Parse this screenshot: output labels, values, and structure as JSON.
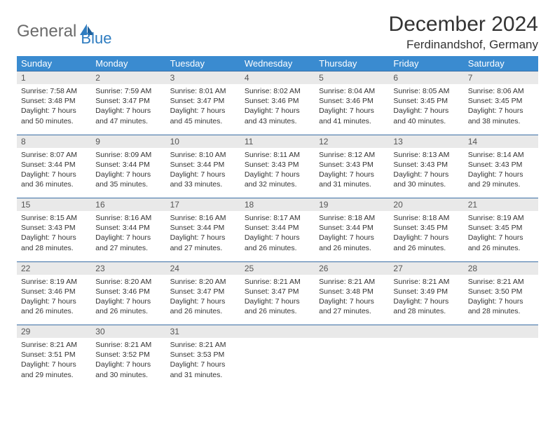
{
  "logo": {
    "text1": "General",
    "text2": "Blue"
  },
  "title": "December 2024",
  "location": "Ferdinandshof, Germany",
  "headers": [
    "Sunday",
    "Monday",
    "Tuesday",
    "Wednesday",
    "Thursday",
    "Friday",
    "Saturday"
  ],
  "colors": {
    "header_bg": "#3a8bd0",
    "row_divider": "#3a6ea5",
    "daynum_bg": "#e9e9e9",
    "logo_gray": "#6b6b6b",
    "logo_blue": "#2e7cc0"
  },
  "weeks": [
    [
      {
        "num": "1",
        "sunrise": "Sunrise: 7:58 AM",
        "sunset": "Sunset: 3:48 PM",
        "daylight": "Daylight: 7 hours and 50 minutes."
      },
      {
        "num": "2",
        "sunrise": "Sunrise: 7:59 AM",
        "sunset": "Sunset: 3:47 PM",
        "daylight": "Daylight: 7 hours and 47 minutes."
      },
      {
        "num": "3",
        "sunrise": "Sunrise: 8:01 AM",
        "sunset": "Sunset: 3:47 PM",
        "daylight": "Daylight: 7 hours and 45 minutes."
      },
      {
        "num": "4",
        "sunrise": "Sunrise: 8:02 AM",
        "sunset": "Sunset: 3:46 PM",
        "daylight": "Daylight: 7 hours and 43 minutes."
      },
      {
        "num": "5",
        "sunrise": "Sunrise: 8:04 AM",
        "sunset": "Sunset: 3:46 PM",
        "daylight": "Daylight: 7 hours and 41 minutes."
      },
      {
        "num": "6",
        "sunrise": "Sunrise: 8:05 AM",
        "sunset": "Sunset: 3:45 PM",
        "daylight": "Daylight: 7 hours and 40 minutes."
      },
      {
        "num": "7",
        "sunrise": "Sunrise: 8:06 AM",
        "sunset": "Sunset: 3:45 PM",
        "daylight": "Daylight: 7 hours and 38 minutes."
      }
    ],
    [
      {
        "num": "8",
        "sunrise": "Sunrise: 8:07 AM",
        "sunset": "Sunset: 3:44 PM",
        "daylight": "Daylight: 7 hours and 36 minutes."
      },
      {
        "num": "9",
        "sunrise": "Sunrise: 8:09 AM",
        "sunset": "Sunset: 3:44 PM",
        "daylight": "Daylight: 7 hours and 35 minutes."
      },
      {
        "num": "10",
        "sunrise": "Sunrise: 8:10 AM",
        "sunset": "Sunset: 3:44 PM",
        "daylight": "Daylight: 7 hours and 33 minutes."
      },
      {
        "num": "11",
        "sunrise": "Sunrise: 8:11 AM",
        "sunset": "Sunset: 3:43 PM",
        "daylight": "Daylight: 7 hours and 32 minutes."
      },
      {
        "num": "12",
        "sunrise": "Sunrise: 8:12 AM",
        "sunset": "Sunset: 3:43 PM",
        "daylight": "Daylight: 7 hours and 31 minutes."
      },
      {
        "num": "13",
        "sunrise": "Sunrise: 8:13 AM",
        "sunset": "Sunset: 3:43 PM",
        "daylight": "Daylight: 7 hours and 30 minutes."
      },
      {
        "num": "14",
        "sunrise": "Sunrise: 8:14 AM",
        "sunset": "Sunset: 3:43 PM",
        "daylight": "Daylight: 7 hours and 29 minutes."
      }
    ],
    [
      {
        "num": "15",
        "sunrise": "Sunrise: 8:15 AM",
        "sunset": "Sunset: 3:43 PM",
        "daylight": "Daylight: 7 hours and 28 minutes."
      },
      {
        "num": "16",
        "sunrise": "Sunrise: 8:16 AM",
        "sunset": "Sunset: 3:44 PM",
        "daylight": "Daylight: 7 hours and 27 minutes."
      },
      {
        "num": "17",
        "sunrise": "Sunrise: 8:16 AM",
        "sunset": "Sunset: 3:44 PM",
        "daylight": "Daylight: 7 hours and 27 minutes."
      },
      {
        "num": "18",
        "sunrise": "Sunrise: 8:17 AM",
        "sunset": "Sunset: 3:44 PM",
        "daylight": "Daylight: 7 hours and 26 minutes."
      },
      {
        "num": "19",
        "sunrise": "Sunrise: 8:18 AM",
        "sunset": "Sunset: 3:44 PM",
        "daylight": "Daylight: 7 hours and 26 minutes."
      },
      {
        "num": "20",
        "sunrise": "Sunrise: 8:18 AM",
        "sunset": "Sunset: 3:45 PM",
        "daylight": "Daylight: 7 hours and 26 minutes."
      },
      {
        "num": "21",
        "sunrise": "Sunrise: 8:19 AM",
        "sunset": "Sunset: 3:45 PM",
        "daylight": "Daylight: 7 hours and 26 minutes."
      }
    ],
    [
      {
        "num": "22",
        "sunrise": "Sunrise: 8:19 AM",
        "sunset": "Sunset: 3:46 PM",
        "daylight": "Daylight: 7 hours and 26 minutes."
      },
      {
        "num": "23",
        "sunrise": "Sunrise: 8:20 AM",
        "sunset": "Sunset: 3:46 PM",
        "daylight": "Daylight: 7 hours and 26 minutes."
      },
      {
        "num": "24",
        "sunrise": "Sunrise: 8:20 AM",
        "sunset": "Sunset: 3:47 PM",
        "daylight": "Daylight: 7 hours and 26 minutes."
      },
      {
        "num": "25",
        "sunrise": "Sunrise: 8:21 AM",
        "sunset": "Sunset: 3:47 PM",
        "daylight": "Daylight: 7 hours and 26 minutes."
      },
      {
        "num": "26",
        "sunrise": "Sunrise: 8:21 AM",
        "sunset": "Sunset: 3:48 PM",
        "daylight": "Daylight: 7 hours and 27 minutes."
      },
      {
        "num": "27",
        "sunrise": "Sunrise: 8:21 AM",
        "sunset": "Sunset: 3:49 PM",
        "daylight": "Daylight: 7 hours and 28 minutes."
      },
      {
        "num": "28",
        "sunrise": "Sunrise: 8:21 AM",
        "sunset": "Sunset: 3:50 PM",
        "daylight": "Daylight: 7 hours and 28 minutes."
      }
    ],
    [
      {
        "num": "29",
        "sunrise": "Sunrise: 8:21 AM",
        "sunset": "Sunset: 3:51 PM",
        "daylight": "Daylight: 7 hours and 29 minutes."
      },
      {
        "num": "30",
        "sunrise": "Sunrise: 8:21 AM",
        "sunset": "Sunset: 3:52 PM",
        "daylight": "Daylight: 7 hours and 30 minutes."
      },
      {
        "num": "31",
        "sunrise": "Sunrise: 8:21 AM",
        "sunset": "Sunset: 3:53 PM",
        "daylight": "Daylight: 7 hours and 31 minutes."
      },
      null,
      null,
      null,
      null
    ]
  ]
}
